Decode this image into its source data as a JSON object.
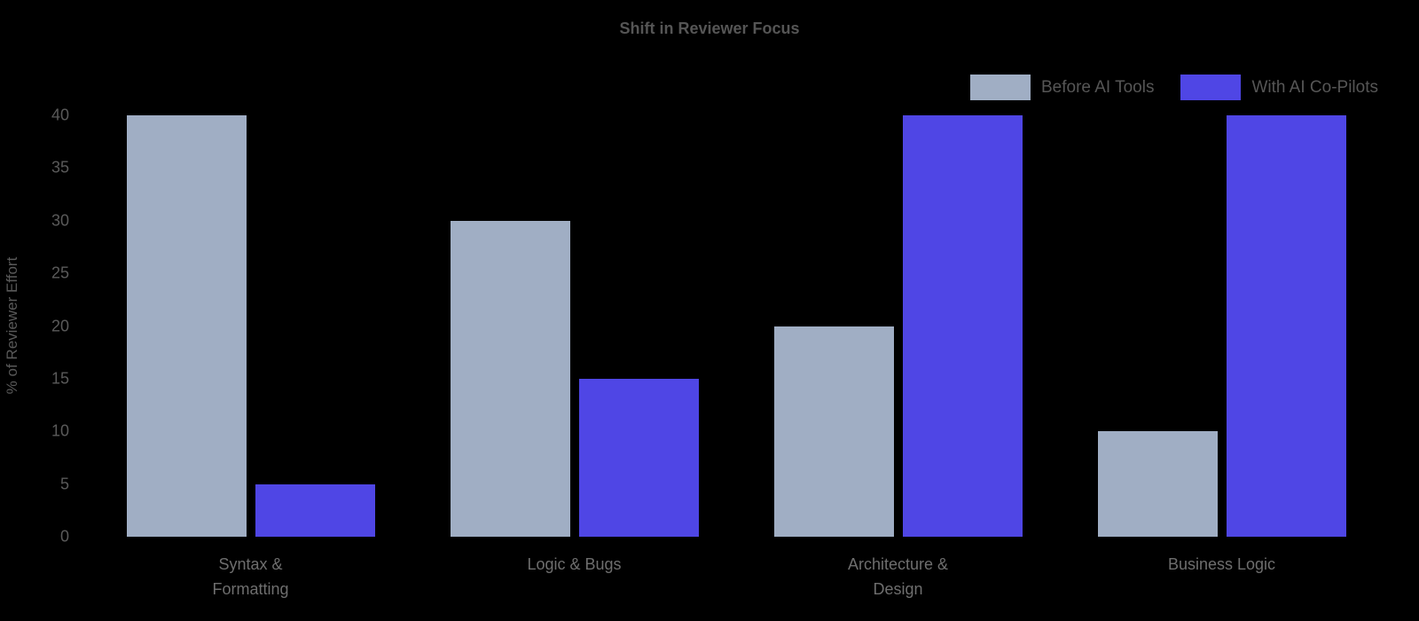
{
  "chart_data": {
    "type": "bar",
    "title": "Shift in Reviewer Focus",
    "ylabel": "% of Reviewer Effort",
    "xlabel": "",
    "categories": [
      "Syntax &\nFormatting",
      "Logic & Bugs",
      "Architecture &\nDesign",
      "Business Logic"
    ],
    "series": [
      {
        "name": "Before AI Tools",
        "color": "#a0aec4",
        "values": [
          40,
          30,
          20,
          10
        ]
      },
      {
        "name": "With AI Co-Pilots",
        "color": "#4f46e5",
        "values": [
          5,
          15,
          40,
          40
        ]
      }
    ],
    "ylim": [
      0,
      40
    ],
    "yticks": [
      0,
      5,
      10,
      15,
      20,
      25,
      30,
      35,
      40
    ],
    "grid": false,
    "legend_position": "top-right",
    "background_color": "#000000",
    "text_color": "#5a5a5a"
  }
}
